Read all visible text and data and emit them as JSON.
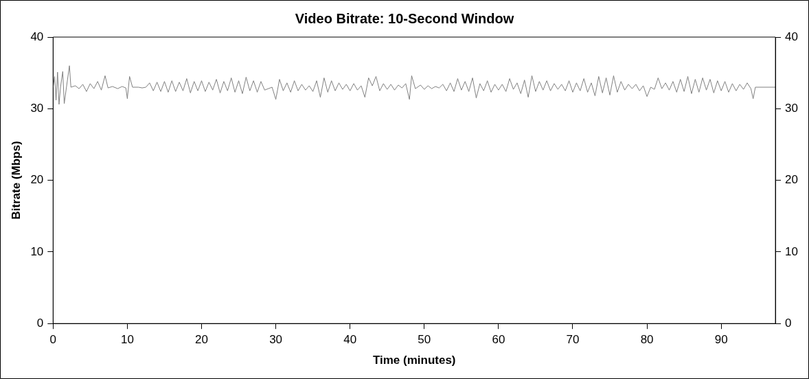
{
  "chart_data": {
    "type": "line",
    "title": "Video Bitrate: 10-Second Window",
    "xlabel": "Time (minutes)",
    "ylabel": "Bitrate (Mbps)",
    "xlim": [
      0,
      97.3
    ],
    "xticks": [
      0,
      10,
      20,
      30,
      40,
      50,
      60,
      70,
      80,
      90
    ],
    "ylim": [
      0,
      40
    ],
    "yticks": [
      0,
      10,
      20,
      30,
      40
    ],
    "y2lim": [
      0,
      40
    ],
    "y2ticks": [
      0,
      10,
      20,
      30,
      40
    ],
    "grid": false,
    "legend": false,
    "marker": "none",
    "line_style": "solid",
    "series": [
      {
        "color": "#808080",
        "x": [
          0,
          0.2,
          0.4,
          0.6,
          0.8,
          1.0,
          1.3,
          1.5,
          1.8,
          2.2,
          2.4,
          3,
          3.5,
          4,
          4.5,
          5,
          5.5,
          6,
          6.5,
          7,
          7.4,
          8,
          8.7,
          9.3,
          9.8,
          10,
          10.3,
          10.7,
          11.5,
          12,
          12.5,
          13,
          13.5,
          14,
          14.5,
          15,
          15.5,
          16,
          16.5,
          17,
          17.5,
          18,
          18.5,
          19,
          19.5,
          20,
          20.5,
          21,
          21.5,
          22,
          22.5,
          23,
          23.5,
          24,
          24.5,
          25,
          25.5,
          26,
          26.5,
          27,
          27.5,
          28,
          28.5,
          29.5,
          30,
          30.5,
          31,
          31.5,
          32,
          32.5,
          33,
          33.5,
          34,
          34.5,
          35,
          35.5,
          36,
          36.5,
          37,
          37.5,
          38,
          38.5,
          39,
          39.5,
          40,
          40.5,
          41,
          41.5,
          42,
          42.5,
          43,
          43.5,
          44,
          44.5,
          45,
          45.5,
          46,
          46.5,
          47,
          47.5,
          48,
          48.3,
          48.8,
          49.5,
          50,
          50.5,
          51,
          51.5,
          52,
          52.5,
          53,
          53.5,
          54,
          54.5,
          55,
          55.5,
          56,
          56.5,
          57,
          57.5,
          58,
          58.5,
          59,
          59.5,
          60,
          60.5,
          61,
          61.5,
          62,
          62.5,
          63,
          63.5,
          64,
          64.5,
          65,
          65.5,
          66,
          66.5,
          67,
          67.5,
          68,
          68.5,
          69,
          69.5,
          70,
          70.5,
          71,
          71.5,
          72,
          72.5,
          73,
          73.5,
          74,
          74.5,
          75,
          75.5,
          76,
          76.5,
          77,
          77.5,
          78,
          78.5,
          79,
          79.5,
          80,
          80.5,
          81,
          81.5,
          82,
          82.5,
          83,
          83.5,
          84,
          84.5,
          85,
          85.5,
          86,
          86.5,
          87,
          87.5,
          88,
          88.5,
          89,
          89.5,
          90,
          90.5,
          91,
          91.5,
          92,
          92.5,
          93,
          93.5,
          94,
          94.3,
          94.6,
          97.3
        ],
        "values": [
          33,
          34.5,
          31.2,
          35.1,
          30.6,
          33,
          35.2,
          30.7,
          33,
          36,
          33,
          33.2,
          32.8,
          33.4,
          32.4,
          33.5,
          32.8,
          33.8,
          32.6,
          34.6,
          32.9,
          33.1,
          32.8,
          33.1,
          32.9,
          31.4,
          34.5,
          33,
          33,
          32.9,
          33,
          33.6,
          32.5,
          33.7,
          32.4,
          33.8,
          32.3,
          33.9,
          32.4,
          33.7,
          32.5,
          34.2,
          32.2,
          33.8,
          32.5,
          33.9,
          32.4,
          33.7,
          32.6,
          34.1,
          32.2,
          33.8,
          32.5,
          34.3,
          32.3,
          33.9,
          32.1,
          34.4,
          32.5,
          33.9,
          32.3,
          33.8,
          32.6,
          33,
          31.3,
          34.1,
          32.5,
          33.6,
          32.3,
          33.9,
          32.5,
          33.4,
          32.6,
          33.2,
          32.4,
          33.9,
          31.6,
          34.3,
          32.3,
          33.9,
          32.5,
          33.6,
          32.7,
          33.4,
          32.5,
          33.5,
          32.6,
          33.2,
          31.6,
          34.3,
          33.2,
          34.5,
          32.5,
          33.5,
          32.7,
          33.4,
          32.6,
          33.3,
          32.9,
          33.5,
          31.3,
          34.6,
          32.8,
          33.3,
          32.7,
          33.2,
          32.8,
          33.1,
          32.9,
          33.4,
          32.5,
          33.6,
          32.4,
          34.2,
          32.6,
          33.8,
          32.4,
          34.3,
          31.5,
          33.5,
          32.5,
          33.9,
          32.3,
          33.4,
          32.6,
          33.4,
          32.4,
          34.2,
          32.7,
          33.6,
          32.1,
          34,
          31.6,
          34.6,
          32.4,
          33.8,
          32.6,
          33.9,
          32.5,
          33.5,
          32.7,
          33.4,
          32.5,
          33.9,
          32.3,
          33.6,
          32.5,
          34.2,
          32.3,
          33.6,
          31.8,
          34.5,
          32.2,
          34.3,
          31.9,
          34.6,
          32.3,
          33.8,
          32.6,
          33.4,
          32.8,
          33.4,
          32.5,
          33.2,
          31.7,
          33,
          32.7,
          34.3,
          32.8,
          33.6,
          32.6,
          33.8,
          32.3,
          34.1,
          32.4,
          34.5,
          32.1,
          34.1,
          32.3,
          34.3,
          32.6,
          34.1,
          32.2,
          33.9,
          32.5,
          33.8,
          32.3,
          33.5,
          32.5,
          33.4,
          32.7,
          33.6,
          32.8,
          31.4,
          33,
          33
        ]
      }
    ]
  }
}
